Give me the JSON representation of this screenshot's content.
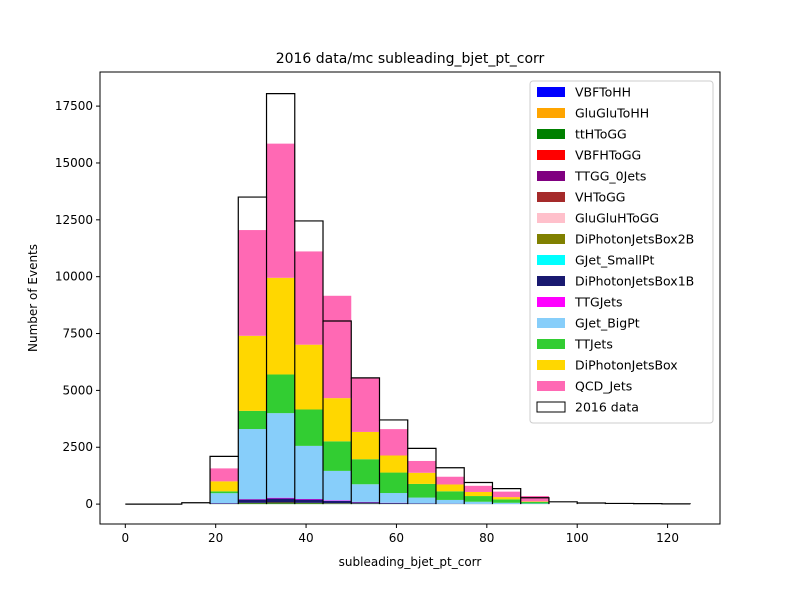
{
  "chart_data": {
    "type": "bar",
    "title": "2016 data/mc subleading_bjet_pt_corr",
    "xlabel": "subleading_bjet_pt_corr",
    "ylabel": "Number of Events",
    "xlim": [
      -5.6,
      131.6
    ],
    "ylim": [
      -875,
      19000
    ],
    "xticks": [
      0,
      20,
      40,
      60,
      80,
      100,
      120
    ],
    "yticks": [
      0,
      2500,
      5000,
      7500,
      10000,
      12500,
      15000,
      17500
    ],
    "tick_labels_x": [
      "0",
      "20",
      "40",
      "60",
      "80",
      "100",
      "120"
    ],
    "tick_labels_y": [
      "0",
      "2500",
      "5000",
      "7500",
      "10000",
      "12500",
      "15000",
      "17500"
    ],
    "legend_position": "top-right",
    "bin_edges": [
      0,
      6.25,
      12.5,
      18.75,
      25,
      31.25,
      37.5,
      43.75,
      50,
      56.25,
      62.5,
      68.75,
      75,
      81.25,
      87.5,
      93.75,
      100,
      106.25,
      112.5,
      118.75,
      125
    ],
    "mc_series": [
      {
        "name": "VBFToHH",
        "color": "#0000ff",
        "values": [
          0,
          0,
          0,
          0,
          0,
          0,
          0,
          0,
          0,
          0,
          0,
          0,
          0,
          0,
          0,
          0,
          0,
          0,
          0,
          0
        ]
      },
      {
        "name": "GluGluToHH",
        "color": "#ffa500",
        "values": [
          0,
          0,
          0,
          0,
          0,
          0,
          0,
          0,
          0,
          0,
          0,
          0,
          0,
          0,
          0,
          0,
          0,
          0,
          0,
          0
        ]
      },
      {
        "name": "ttHToGG",
        "color": "#008000",
        "values": [
          0,
          0,
          0,
          5,
          30,
          35,
          30,
          20,
          10,
          5,
          3,
          2,
          1,
          0,
          0,
          0,
          0,
          0,
          0,
          0
        ]
      },
      {
        "name": "VBFHToGG",
        "color": "#ff0000",
        "values": [
          0,
          0,
          0,
          0,
          0,
          0,
          0,
          0,
          0,
          0,
          0,
          0,
          0,
          0,
          0,
          0,
          0,
          0,
          0,
          0
        ]
      },
      {
        "name": "TTGG_0Jets",
        "color": "#800080",
        "values": [
          0,
          0,
          0,
          0,
          5,
          5,
          5,
          5,
          3,
          2,
          1,
          1,
          0,
          0,
          0,
          0,
          0,
          0,
          0,
          0
        ]
      },
      {
        "name": "VHToGG",
        "color": "#a52a2a",
        "values": [
          0,
          0,
          0,
          0,
          0,
          0,
          0,
          0,
          0,
          0,
          0,
          0,
          0,
          0,
          0,
          0,
          0,
          0,
          0,
          0
        ]
      },
      {
        "name": "GluGluHToGG",
        "color": "#ffc0cb",
        "values": [
          0,
          0,
          0,
          0,
          0,
          0,
          0,
          0,
          0,
          0,
          0,
          0,
          0,
          0,
          0,
          0,
          0,
          0,
          0,
          0
        ]
      },
      {
        "name": "DiPhotonJetsBox2B",
        "color": "#808000",
        "values": [
          0,
          0,
          0,
          0,
          20,
          30,
          20,
          15,
          10,
          5,
          3,
          2,
          1,
          0,
          0,
          0,
          0,
          0,
          0,
          0
        ]
      },
      {
        "name": "GJet_SmallPt",
        "color": "#00ffff",
        "values": [
          0,
          0,
          0,
          0,
          0,
          0,
          0,
          0,
          0,
          0,
          0,
          0,
          0,
          0,
          0,
          0,
          0,
          0,
          0,
          0
        ]
      },
      {
        "name": "DiPhotonJetsBox1B",
        "color": "#191970",
        "values": [
          0,
          0,
          0,
          30,
          145,
          180,
          145,
          100,
          60,
          35,
          20,
          10,
          5,
          2,
          1,
          0,
          0,
          0,
          0,
          0
        ]
      },
      {
        "name": "TTGJets",
        "color": "#ff00ff",
        "values": [
          0,
          0,
          0,
          5,
          20,
          30,
          25,
          20,
          15,
          10,
          5,
          3,
          2,
          1,
          0,
          0,
          0,
          0,
          0,
          0
        ]
      },
      {
        "name": "GJet_BigPt",
        "color": "#87cefa",
        "values": [
          0,
          0,
          0,
          440,
          3080,
          3720,
          2335,
          1300,
          775,
          430,
          255,
          165,
          95,
          55,
          25,
          0,
          0,
          0,
          0,
          0
        ]
      },
      {
        "name": "TTJets",
        "color": "#32cd32",
        "values": [
          0,
          0,
          0,
          80,
          800,
          1700,
          1600,
          1300,
          1100,
          900,
          600,
          380,
          250,
          150,
          70,
          0,
          0,
          0,
          0,
          0
        ]
      },
      {
        "name": "DiPhotonJetsBox",
        "color": "#ffd700",
        "values": [
          0,
          0,
          0,
          440,
          3300,
          4250,
          2850,
          1900,
          1200,
          750,
          490,
          300,
          180,
          100,
          20,
          0,
          0,
          0,
          0,
          0
        ]
      },
      {
        "name": "QCD_Jets",
        "color": "#ff69b4",
        "values": [
          0,
          0,
          0,
          570,
          4650,
          5900,
          4100,
          4500,
          2380,
          1160,
          520,
          340,
          270,
          240,
          240,
          0,
          0,
          0,
          0,
          0
        ]
      }
    ],
    "data_series": {
      "name": "2016 data",
      "values": [
        0,
        0,
        60,
        2100,
        13500,
        18050,
        12450,
        8050,
        5550,
        3700,
        2450,
        1600,
        950,
        680,
        280,
        100,
        50,
        30,
        20,
        10
      ]
    }
  }
}
